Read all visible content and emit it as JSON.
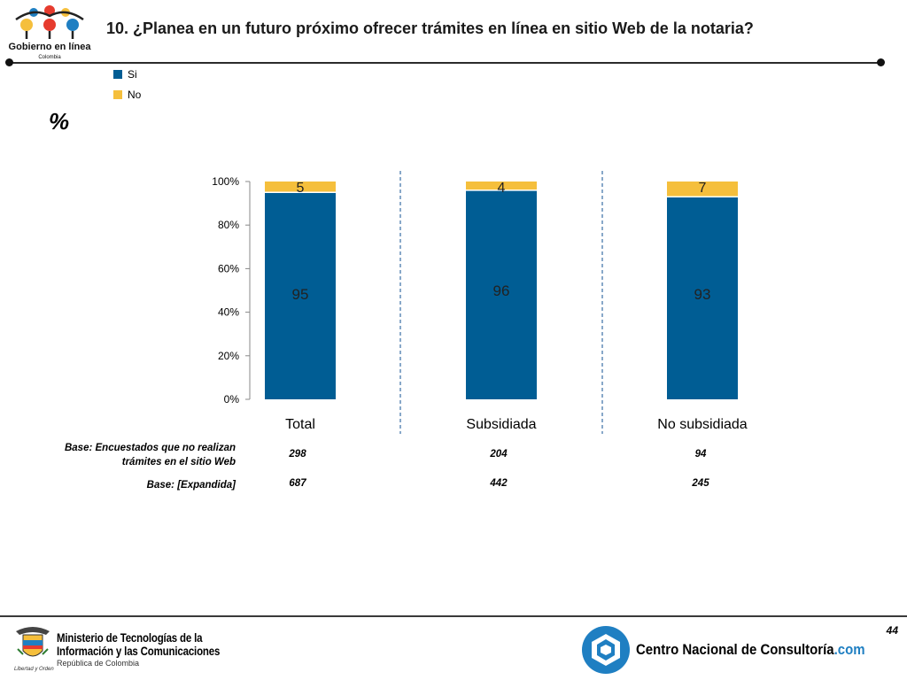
{
  "header": {
    "logo_text": "Gobierno en línea",
    "logo_subtext": "Colombia",
    "title": "10. ¿Planea en un futuro próximo ofrecer trámites en línea en sitio Web de la notaria?"
  },
  "unit_label": "%",
  "colors": {
    "si": "#005d94",
    "no": "#f5bf3c",
    "divider": "#3a6ea5"
  },
  "chart_data": {
    "type": "bar",
    "stacked": true,
    "categories": [
      "Total",
      "Subsidiada",
      "No subsidiada"
    ],
    "series": [
      {
        "name": "Si",
        "values": [
          95,
          96,
          93
        ]
      },
      {
        "name": "No",
        "values": [
          5,
          4,
          7
        ]
      }
    ],
    "y_ticks": [
      "0%",
      "20%",
      "40%",
      "60%",
      "80%",
      "100%"
    ],
    "ylim": [
      0,
      100
    ],
    "legend_position": "top-left",
    "grid": false
  },
  "bases": {
    "rows": [
      {
        "label_line1": "Base: Encuestados que no realizan",
        "label_line2": "trámites en el sitio Web",
        "values": [
          "298",
          "204",
          "94"
        ]
      },
      {
        "label_line1": "Base: [Expandida]",
        "label_line2": "",
        "values": [
          "687",
          "442",
          "245"
        ]
      }
    ]
  },
  "footer": {
    "ministry_line1": "Ministerio de Tecnologías de la",
    "ministry_line2": "Información y las Comunicaciones",
    "ministry_line3": "República de Colombia",
    "ministry_motto": "Libertad y Orden",
    "cnc_name": "Centro Nacional de Consultoría",
    "cnc_suffix": ".com",
    "page_number": "44"
  }
}
